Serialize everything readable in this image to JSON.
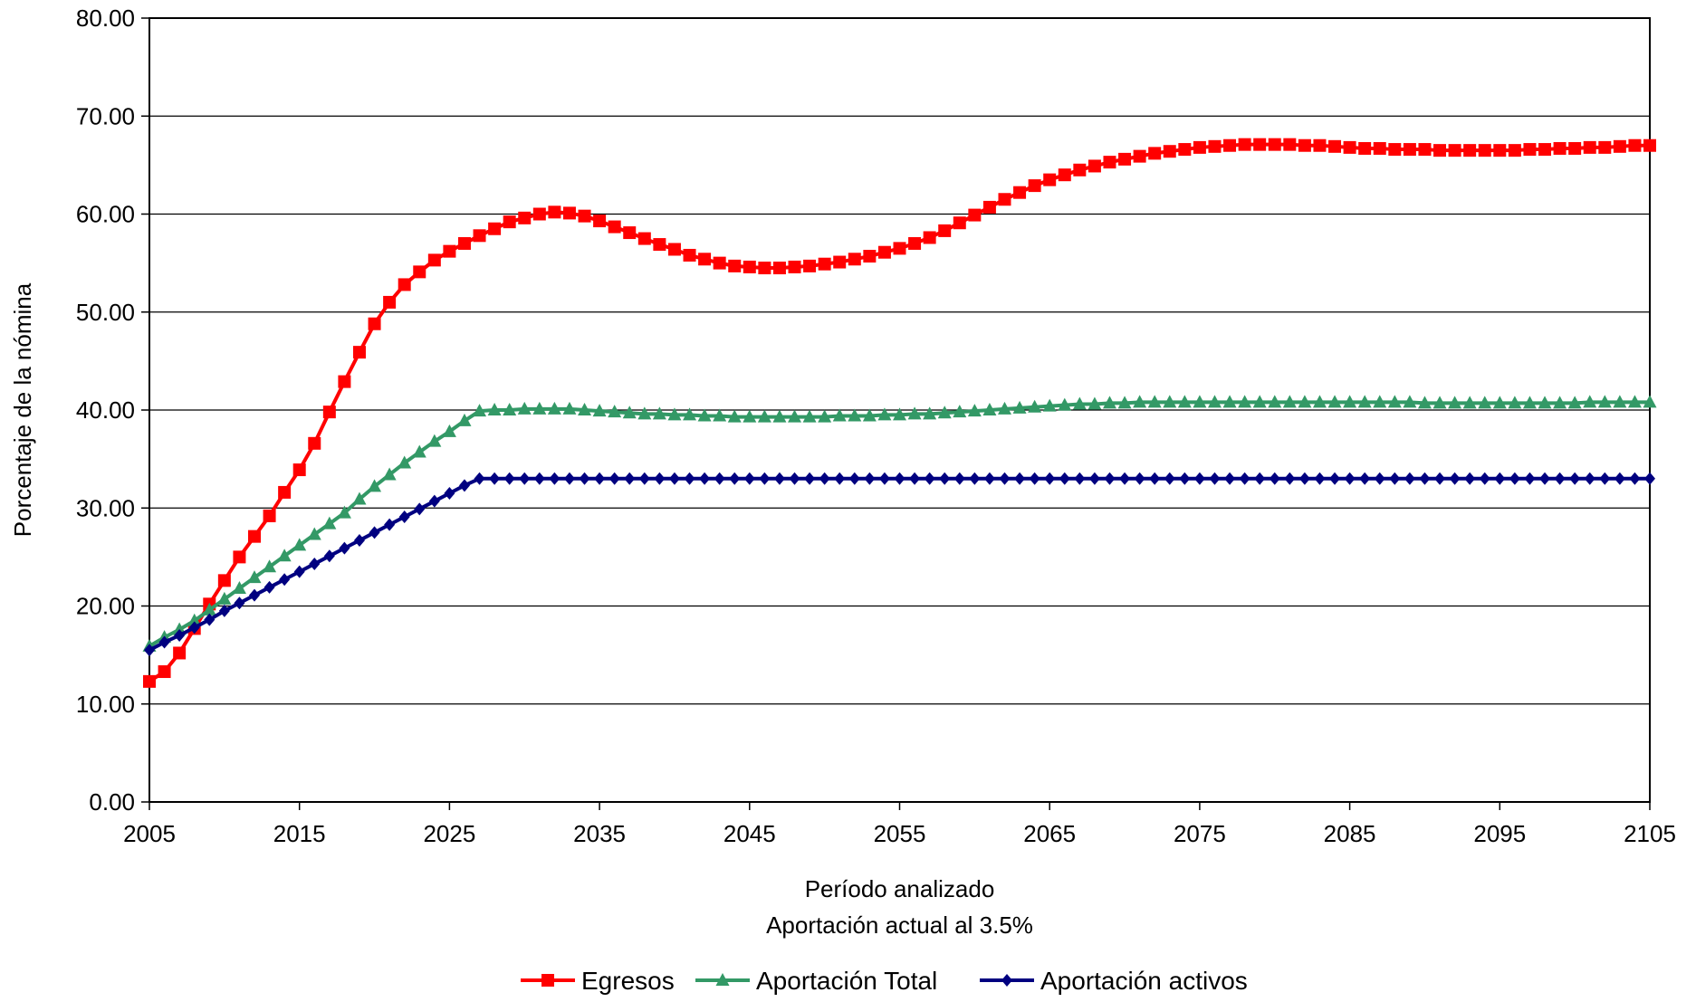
{
  "chart_data": {
    "type": "line",
    "xlabel": "Período analizado",
    "xlabel_line2": "Aportación actual al 3.5%",
    "ylabel": "Porcentaje de la nómina",
    "ylim": [
      0,
      80
    ],
    "yticks": [
      "0.00",
      "10.00",
      "20.00",
      "30.00",
      "40.00",
      "50.00",
      "60.00",
      "70.00",
      "80.00"
    ],
    "xlim": [
      2005,
      2105
    ],
    "xticks": [
      "2005",
      "2015",
      "2025",
      "2035",
      "2045",
      "2055",
      "2065",
      "2075",
      "2085",
      "2095",
      "2105"
    ],
    "grid": "horizontal",
    "legend_position": "bottom",
    "x": [
      2005,
      2006,
      2007,
      2008,
      2009,
      2010,
      2011,
      2012,
      2013,
      2014,
      2015,
      2016,
      2017,
      2018,
      2019,
      2020,
      2021,
      2022,
      2023,
      2024,
      2025,
      2026,
      2027,
      2028,
      2029,
      2030,
      2031,
      2032,
      2033,
      2034,
      2035,
      2036,
      2037,
      2038,
      2039,
      2040,
      2041,
      2042,
      2043,
      2044,
      2045,
      2046,
      2047,
      2048,
      2049,
      2050,
      2051,
      2052,
      2053,
      2054,
      2055,
      2056,
      2057,
      2058,
      2059,
      2060,
      2061,
      2062,
      2063,
      2064,
      2065,
      2066,
      2067,
      2068,
      2069,
      2070,
      2071,
      2072,
      2073,
      2074,
      2075,
      2076,
      2077,
      2078,
      2079,
      2080,
      2081,
      2082,
      2083,
      2084,
      2085,
      2086,
      2087,
      2088,
      2089,
      2090,
      2091,
      2092,
      2093,
      2094,
      2095,
      2096,
      2097,
      2098,
      2099,
      2100,
      2101,
      2102,
      2103,
      2104,
      2105
    ],
    "series": [
      {
        "name": "Egresos",
        "color": "#ff0000",
        "marker": "square",
        "values": [
          12.3,
          13.3,
          15.2,
          17.7,
          20.2,
          22.6,
          25.0,
          27.1,
          29.2,
          31.6,
          33.9,
          36.6,
          39.8,
          42.9,
          45.9,
          48.8,
          51.0,
          52.8,
          54.1,
          55.3,
          56.2,
          57.0,
          57.8,
          58.5,
          59.2,
          59.6,
          60.0,
          60.2,
          60.1,
          59.8,
          59.3,
          58.7,
          58.1,
          57.5,
          56.9,
          56.4,
          55.8,
          55.4,
          55.0,
          54.7,
          54.6,
          54.5,
          54.5,
          54.6,
          54.7,
          54.9,
          55.1,
          55.4,
          55.7,
          56.1,
          56.5,
          57.0,
          57.6,
          58.3,
          59.1,
          59.9,
          60.7,
          61.5,
          62.2,
          62.9,
          63.5,
          64.0,
          64.5,
          64.9,
          65.3,
          65.6,
          65.9,
          66.2,
          66.4,
          66.6,
          66.8,
          66.9,
          67.0,
          67.1,
          67.1,
          67.1,
          67.1,
          67.0,
          67.0,
          66.9,
          66.8,
          66.7,
          66.7,
          66.6,
          66.6,
          66.6,
          66.5,
          66.5,
          66.5,
          66.5,
          66.5,
          66.5,
          66.6,
          66.6,
          66.7,
          66.7,
          66.8,
          66.8,
          66.9,
          67.0,
          67.0
        ]
      },
      {
        "name": "Aportación Total",
        "color": "#339966",
        "marker": "triangle",
        "values": [
          15.9,
          16.8,
          17.6,
          18.5,
          19.6,
          20.7,
          21.8,
          22.9,
          24.0,
          25.1,
          26.2,
          27.3,
          28.4,
          29.5,
          30.9,
          32.2,
          33.4,
          34.6,
          35.7,
          36.8,
          37.8,
          38.9,
          39.9,
          40.0,
          40.0,
          40.1,
          40.1,
          40.1,
          40.1,
          40.0,
          39.9,
          39.8,
          39.7,
          39.6,
          39.6,
          39.5,
          39.5,
          39.4,
          39.4,
          39.3,
          39.3,
          39.3,
          39.3,
          39.3,
          39.3,
          39.3,
          39.4,
          39.4,
          39.4,
          39.5,
          39.5,
          39.6,
          39.6,
          39.7,
          39.8,
          39.9,
          40.0,
          40.1,
          40.2,
          40.3,
          40.4,
          40.5,
          40.6,
          40.6,
          40.7,
          40.7,
          40.8,
          40.8,
          40.8,
          40.8,
          40.8,
          40.8,
          40.8,
          40.8,
          40.8,
          40.8,
          40.8,
          40.8,
          40.8,
          40.8,
          40.8,
          40.8,
          40.8,
          40.8,
          40.8,
          40.7,
          40.7,
          40.7,
          40.7,
          40.7,
          40.7,
          40.7,
          40.7,
          40.7,
          40.7,
          40.7,
          40.8,
          40.8,
          40.8,
          40.8,
          40.8
        ]
      },
      {
        "name": "Aportación activos",
        "color": "#000080",
        "marker": "diamond",
        "values": [
          15.5,
          16.3,
          17.0,
          17.8,
          18.6,
          19.5,
          20.3,
          21.1,
          21.9,
          22.7,
          23.5,
          24.3,
          25.1,
          25.9,
          26.7,
          27.5,
          28.3,
          29.1,
          29.9,
          30.7,
          31.5,
          32.3,
          33.0,
          33.0,
          33.0,
          33.0,
          33.0,
          33.0,
          33.0,
          33.0,
          33.0,
          33.0,
          33.0,
          33.0,
          33.0,
          33.0,
          33.0,
          33.0,
          33.0,
          33.0,
          33.0,
          33.0,
          33.0,
          33.0,
          33.0,
          33.0,
          33.0,
          33.0,
          33.0,
          33.0,
          33.0,
          33.0,
          33.0,
          33.0,
          33.0,
          33.0,
          33.0,
          33.0,
          33.0,
          33.0,
          33.0,
          33.0,
          33.0,
          33.0,
          33.0,
          33.0,
          33.0,
          33.0,
          33.0,
          33.0,
          33.0,
          33.0,
          33.0,
          33.0,
          33.0,
          33.0,
          33.0,
          33.0,
          33.0,
          33.0,
          33.0,
          33.0,
          33.0,
          33.0,
          33.0,
          33.0,
          33.0,
          33.0,
          33.0,
          33.0,
          33.0,
          33.0,
          33.0,
          33.0,
          33.0,
          33.0,
          33.0,
          33.0,
          33.0,
          33.0,
          33.0
        ]
      }
    ]
  }
}
